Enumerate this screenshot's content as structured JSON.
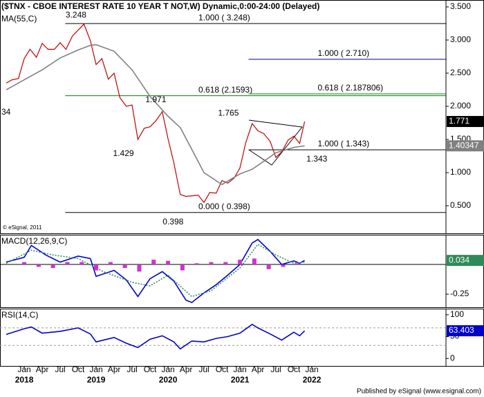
{
  "chart_data": [
    {
      "type": "line",
      "title": "($TNX - CBOE INTEREST RATE 10 YEAR T NOT,W) Dynamic,0:00-24:00 (Delayed)",
      "xlim": [
        2017.663,
        2023.865
      ],
      "ylim": [
        0.083,
        3.604
      ],
      "yticks": [
        {
          "value": 3.5,
          "label": "3.500"
        },
        {
          "value": 3.0,
          "label": "3.000"
        },
        {
          "value": 2.5,
          "label": "2.500"
        },
        {
          "value": 2.0,
          "label": "2.000"
        },
        {
          "value": 1.5,
          "label": "1.500"
        },
        {
          "value": 1.0,
          "label": "1.000"
        },
        {
          "value": 0.5,
          "label": "0.500"
        }
      ],
      "series": [
        {
          "color": "#c00000",
          "x": [
            2017.75,
            2017.83,
            2017.92,
            2018.0,
            2018.08,
            2018.17,
            2018.25,
            2018.33,
            2018.42,
            2018.5,
            2018.58,
            2018.67,
            2018.75,
            2018.83,
            2018.92,
            2019.0,
            2019.08,
            2019.17,
            2019.25,
            2019.33,
            2019.42,
            2019.5,
            2019.58,
            2019.67,
            2019.75,
            2019.83,
            2019.92,
            2020.0,
            2020.08,
            2020.17,
            2020.25,
            2020.33,
            2020.42,
            2020.5,
            2020.58,
            2020.67,
            2020.75,
            2020.83,
            2020.92,
            2021.0,
            2021.08,
            2021.17,
            2021.25,
            2021.33,
            2021.42,
            2021.5,
            2021.58,
            2021.67,
            2021.75,
            2021.83,
            2021.9
          ],
          "values": [
            2.35,
            2.4,
            2.42,
            2.72,
            2.86,
            2.74,
            2.95,
            2.86,
            2.86,
            2.96,
            2.86,
            3.06,
            3.15,
            3.24,
            2.99,
            2.63,
            2.72,
            2.41,
            2.5,
            2.13,
            2.0,
            2.02,
            1.5,
            1.67,
            1.69,
            1.78,
            1.92,
            1.51,
            1.15,
            0.67,
            0.64,
            0.65,
            0.66,
            0.55,
            0.7,
            0.69,
            0.88,
            0.84,
            0.92,
            1.07,
            1.45,
            1.74,
            1.63,
            1.59,
            1.47,
            1.23,
            1.31,
            1.49,
            1.55,
            1.44,
            1.771
          ]
        },
        {
          "name": "MA(55,C)",
          "color": "#808080",
          "x": [
            2017.75,
            2018.0,
            2018.25,
            2018.5,
            2018.75,
            2018.92,
            2019.0,
            2019.25,
            2019.5,
            2019.75,
            2020.0,
            2020.17,
            2020.33,
            2020.5,
            2020.75,
            2021.0,
            2021.17,
            2021.33,
            2021.5,
            2021.75,
            2021.9
          ],
          "values": [
            2.25,
            2.4,
            2.55,
            2.73,
            2.85,
            2.92,
            2.93,
            2.83,
            2.55,
            2.15,
            1.85,
            1.68,
            1.35,
            1.0,
            0.82,
            0.98,
            1.05,
            1.17,
            1.3,
            1.38,
            1.40347
          ]
        }
      ],
      "levels": [
        {
          "label": "1.000 ( 3.248)",
          "value": 3.248,
          "from": 2018.57,
          "color": "#000000"
        },
        {
          "label": "1.000 ( 2.710)",
          "value": 2.71,
          "from": 2021.12,
          "color": "#000080"
        },
        {
          "label": "0.618 (2.1593)",
          "value": 2.1593,
          "from": 2018.57,
          "color": "#008000"
        },
        {
          "label": "0.618 ( 2.187806)",
          "value": 2.187806,
          "from": 2021.12,
          "color": "#008000"
        },
        {
          "label": "1.000 ( 1.343)",
          "value": 1.343,
          "from": 2021.12,
          "color": "#000000"
        },
        {
          "label": "0.000 ( 0.398)",
          "value": 0.398,
          "from": 2018.57,
          "color": "#000000"
        }
      ],
      "points": [
        {
          "x": 2018.72,
          "value": 3.248,
          "position": "above"
        },
        {
          "x": 2019.83,
          "value": 1.971,
          "position": "above"
        },
        {
          "x": 2019.38,
          "value": 1.429,
          "position": "below"
        },
        {
          "x": 2020.84,
          "value": 1.765,
          "position": "above"
        },
        {
          "x": 2022.07,
          "value": 1.343,
          "position": "below"
        },
        {
          "x": 2020.07,
          "value": 0.398,
          "position": "below"
        }
      ],
      "edge_label": "34",
      "copyright": "© eSignal, 2011"
    },
    {
      "type": "line",
      "title": "MACD(12,26,9,C)",
      "xlim": [
        2017.663,
        2023.865
      ],
      "ylim": [
        -0.36,
        0.25
      ],
      "yticks": [
        -0.25
      ],
      "levels": [
        0
      ],
      "series": [
        {
          "color": "#0000cc",
          "x": [
            2017.75,
            2018.0,
            2018.1,
            2018.3,
            2018.5,
            2018.75,
            2018.92,
            2019.0,
            2019.25,
            2019.42,
            2019.58,
            2019.75,
            2019.92,
            2020.08,
            2020.25,
            2020.33,
            2020.5,
            2020.67,
            2020.83,
            2021.0,
            2021.17,
            2021.25,
            2021.42,
            2021.58,
            2021.75,
            2021.83,
            2021.9
          ],
          "values": [
            0.02,
            0.06,
            0.16,
            0.08,
            0.02,
            0.07,
            0.05,
            -0.1,
            -0.05,
            -0.13,
            -0.27,
            -0.12,
            -0.06,
            -0.14,
            -0.3,
            -0.32,
            -0.24,
            -0.17,
            -0.09,
            0.0,
            0.18,
            0.21,
            0.11,
            0.0,
            0.03,
            0.01,
            0.034
          ]
        },
        {
          "color": "#2e8b57",
          "dashed": true,
          "x": [
            2017.75,
            2018.1,
            2018.4,
            2018.75,
            2019.1,
            2019.5,
            2019.75,
            2020.0,
            2020.33,
            2020.6,
            2021.0,
            2021.25,
            2021.5,
            2021.75,
            2021.9
          ],
          "values": [
            0.01,
            0.12,
            0.08,
            0.05,
            -0.06,
            -0.15,
            -0.18,
            -0.09,
            -0.27,
            -0.22,
            -0.03,
            0.17,
            0.08,
            0.01,
            0.02
          ]
        },
        {
          "color": "#cc33cc",
          "kind": "bar",
          "x": [
            2018.0,
            2018.2,
            2018.4,
            2018.6,
            2018.8,
            2019.0,
            2019.2,
            2019.4,
            2019.6,
            2019.8,
            2020.0,
            2020.2,
            2020.4,
            2020.6,
            2020.8,
            2021.0,
            2021.2,
            2021.4,
            2021.6,
            2021.8
          ],
          "values": [
            0.02,
            -0.02,
            -0.03,
            0.02,
            0.02,
            -0.05,
            0.02,
            -0.03,
            -0.06,
            0.04,
            0.03,
            -0.05,
            0.01,
            0.02,
            0.02,
            0.04,
            0.05,
            -0.04,
            -0.02,
            0.01
          ]
        }
      ]
    },
    {
      "type": "line",
      "title": "RSI(14,C)",
      "xlim": [
        2017.663,
        2023.865
      ],
      "ylim": [
        -17,
        114
      ],
      "yticks": [
        100,
        50,
        0
      ],
      "levels": [
        70,
        30
      ],
      "xticks": [
        {
          "value": 2018.0,
          "label": "Jan"
        },
        {
          "value": 2018.25,
          "label": "Apr"
        },
        {
          "value": 2018.5,
          "label": "Jul"
        },
        {
          "value": 2018.75,
          "label": "Oct"
        },
        {
          "value": 2019.0,
          "label": "Jan"
        },
        {
          "value": 2019.25,
          "label": "Apr"
        },
        {
          "value": 2019.5,
          "label": "Jul"
        },
        {
          "value": 2019.75,
          "label": "Oct"
        },
        {
          "value": 2020.0,
          "label": "Jan"
        },
        {
          "value": 2020.25,
          "label": "Apr"
        },
        {
          "value": 2020.5,
          "label": "Jul"
        },
        {
          "value": 2020.75,
          "label": "Oct"
        },
        {
          "value": 2021.0,
          "label": "Jan"
        },
        {
          "value": 2021.25,
          "label": "Apr"
        },
        {
          "value": 2021.5,
          "label": "Jul"
        },
        {
          "value": 2021.75,
          "label": "Oct"
        },
        {
          "value": 2022.0,
          "label": "Jan"
        }
      ],
      "years": [
        2018,
        2019,
        2020,
        2021,
        2022
      ],
      "series": [
        {
          "color": "#0000cc",
          "x": [
            2017.75,
            2018.0,
            2018.1,
            2018.25,
            2018.5,
            2018.75,
            2018.92,
            2019.0,
            2019.25,
            2019.42,
            2019.58,
            2019.75,
            2019.92,
            2020.08,
            2020.17,
            2020.33,
            2020.5,
            2020.67,
            2020.83,
            2021.0,
            2021.17,
            2021.25,
            2021.42,
            2021.58,
            2021.75,
            2021.83,
            2021.9
          ],
          "values": [
            55,
            68,
            72,
            58,
            62,
            70,
            56,
            38,
            48,
            35,
            25,
            44,
            52,
            38,
            22,
            40,
            38,
            46,
            50,
            58,
            78,
            70,
            56,
            42,
            60,
            52,
            63.403
          ]
        }
      ],
      "footer": "Published by eSignal (www.esignal.com)"
    }
  ]
}
